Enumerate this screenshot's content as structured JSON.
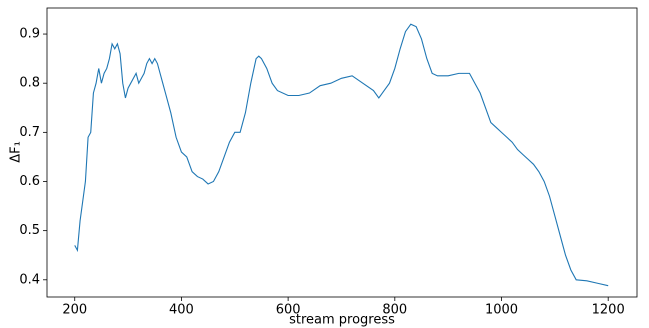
{
  "chart_data": {
    "type": "line",
    "x_label": "stream progress",
    "y_label": "ΔF₁",
    "x": [
      200,
      205,
      210,
      215,
      220,
      225,
      230,
      235,
      240,
      245,
      250,
      255,
      260,
      265,
      270,
      275,
      280,
      285,
      290,
      295,
      300,
      305,
      310,
      315,
      320,
      325,
      330,
      335,
      340,
      345,
      350,
      355,
      360,
      365,
      370,
      380,
      390,
      400,
      410,
      420,
      430,
      440,
      450,
      460,
      470,
      480,
      490,
      500,
      510,
      520,
      530,
      540,
      545,
      550,
      560,
      570,
      580,
      600,
      620,
      640,
      660,
      680,
      700,
      720,
      740,
      760,
      770,
      780,
      790,
      800,
      810,
      820,
      830,
      840,
      850,
      860,
      870,
      880,
      900,
      920,
      940,
      950,
      960,
      970,
      980,
      990,
      1000,
      1010,
      1020,
      1030,
      1040,
      1050,
      1060,
      1070,
      1080,
      1090,
      1100,
      1110,
      1120,
      1130,
      1140,
      1160,
      1180,
      1200
    ],
    "series": [
      {
        "color": "#1f77b4",
        "values": [
          0.47,
          0.46,
          0.52,
          0.56,
          0.6,
          0.69,
          0.7,
          0.78,
          0.8,
          0.83,
          0.8,
          0.82,
          0.83,
          0.85,
          0.88,
          0.87,
          0.88,
          0.86,
          0.8,
          0.77,
          0.79,
          0.8,
          0.81,
          0.82,
          0.8,
          0.81,
          0.82,
          0.84,
          0.85,
          0.84,
          0.85,
          0.84,
          0.82,
          0.8,
          0.78,
          0.74,
          0.69,
          0.66,
          0.65,
          0.62,
          0.61,
          0.605,
          0.595,
          0.6,
          0.62,
          0.65,
          0.68,
          0.7,
          0.7,
          0.74,
          0.8,
          0.85,
          0.855,
          0.85,
          0.83,
          0.8,
          0.785,
          0.775,
          0.775,
          0.78,
          0.795,
          0.8,
          0.81,
          0.815,
          0.8,
          0.785,
          0.77,
          0.785,
          0.8,
          0.83,
          0.87,
          0.905,
          0.92,
          0.915,
          0.89,
          0.85,
          0.82,
          0.815,
          0.815,
          0.82,
          0.82,
          0.8,
          0.78,
          0.75,
          0.72,
          0.71,
          0.7,
          0.69,
          0.68,
          0.665,
          0.655,
          0.645,
          0.635,
          0.62,
          0.6,
          0.57,
          0.53,
          0.49,
          0.45,
          0.42,
          0.4,
          0.398,
          0.393,
          0.388
        ]
      }
    ],
    "xlim": [
      148,
      1254
    ],
    "ylim": [
      0.365,
      0.953
    ],
    "xticks": [
      200,
      400,
      600,
      800,
      1000,
      1200
    ],
    "yticks": [
      0.4,
      0.5,
      0.6,
      0.7,
      0.8,
      0.9
    ]
  }
}
